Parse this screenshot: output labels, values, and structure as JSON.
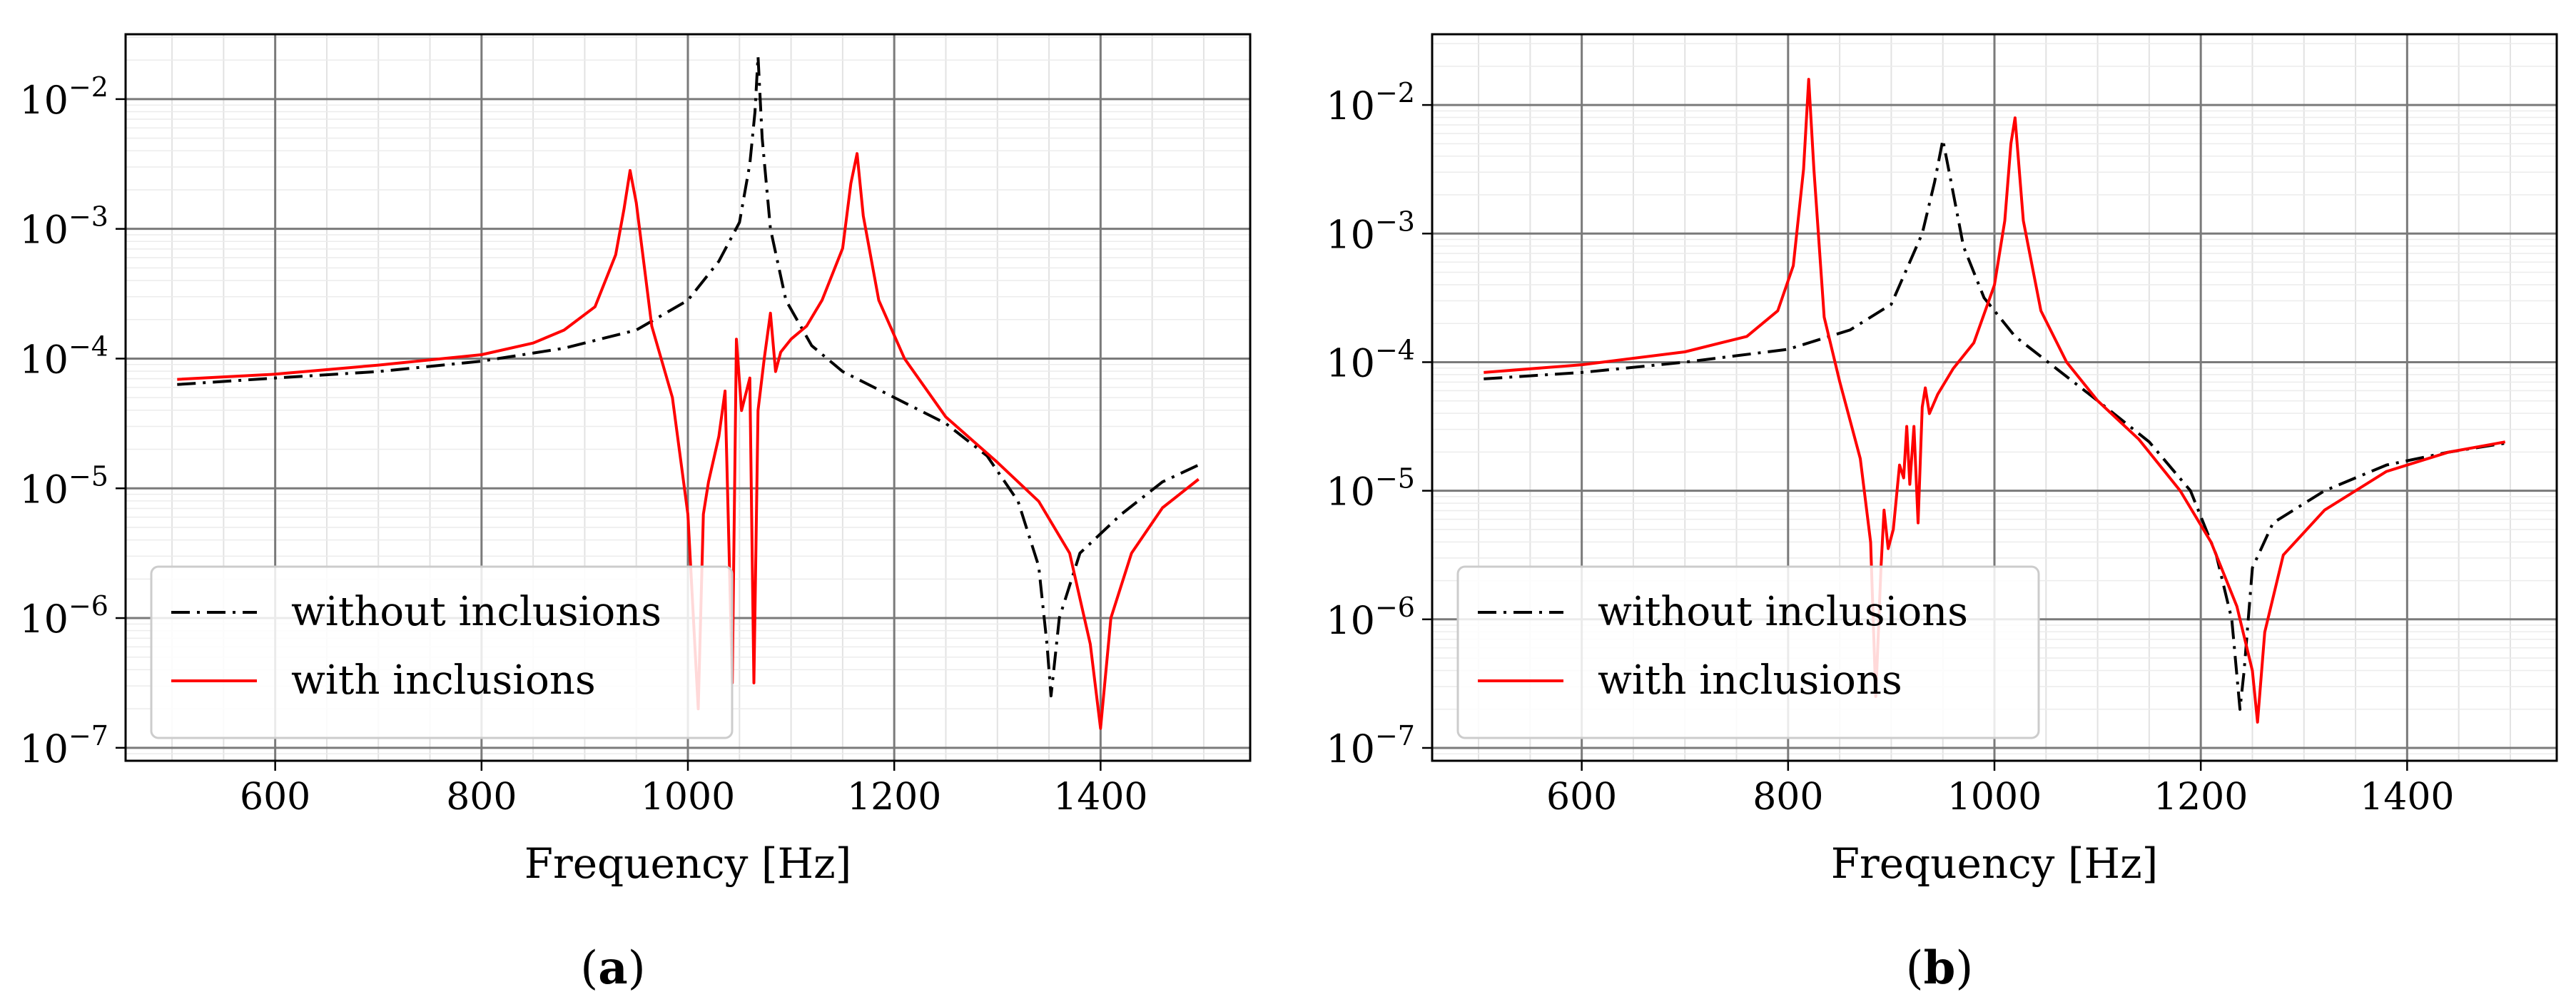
{
  "chart_data": [
    {
      "type": "line",
      "panel_label": "a",
      "title": "",
      "xlabel": "Frequency  [Hz]",
      "ylabel": "",
      "xlim": [
        455,
        1545
      ],
      "ylim_log10": [
        -7.1,
        -1.5
      ],
      "yscale": "log",
      "grid": true,
      "legend": "lower-left",
      "xticks": [
        {
          "value": 600,
          "label": "600"
        },
        {
          "value": 800,
          "label": "800"
        },
        {
          "value": 1000,
          "label": "1000"
        },
        {
          "value": 1200,
          "label": "1200"
        },
        {
          "value": 1400,
          "label": "1400"
        }
      ],
      "yticks": [
        {
          "exp": -7,
          "base": "10",
          "sup": "−7"
        },
        {
          "exp": -6,
          "base": "10",
          "sup": "−6"
        },
        {
          "exp": -5,
          "base": "10",
          "sup": "−5"
        },
        {
          "exp": -4,
          "base": "10",
          "sup": "−4"
        },
        {
          "exp": -3,
          "base": "10",
          "sup": "−3"
        },
        {
          "exp": -2,
          "base": "10",
          "sup": "−2"
        }
      ],
      "series": [
        {
          "name": "without inclusions",
          "color": "#000000",
          "style": "dashdot",
          "x": [
            505,
            600,
            700,
            800,
            880,
            950,
            1000,
            1030,
            1050,
            1060,
            1065,
            1068,
            1072,
            1080,
            1095,
            1120,
            1150,
            1200,
            1250,
            1290,
            1320,
            1340,
            1348,
            1352,
            1360,
            1380,
            1420,
            1460,
            1495
          ],
          "log10y": [
            -4.2,
            -4.15,
            -4.1,
            -4.02,
            -3.92,
            -3.78,
            -3.55,
            -3.25,
            -2.95,
            -2.5,
            -2.1,
            -1.67,
            -2.3,
            -3.0,
            -3.55,
            -3.9,
            -4.1,
            -4.3,
            -4.5,
            -4.75,
            -5.1,
            -5.6,
            -6.2,
            -6.6,
            -6.0,
            -5.5,
            -5.2,
            -4.95,
            -4.82
          ]
        },
        {
          "name": "with inclusions",
          "color": "#ff0000",
          "style": "solid",
          "x": [
            505,
            600,
            700,
            800,
            850,
            880,
            910,
            930,
            938,
            944,
            950,
            965,
            985,
            1000,
            1010,
            1015,
            1020,
            1030,
            1036,
            1040,
            1043,
            1047,
            1052,
            1060,
            1064,
            1068,
            1074,
            1080,
            1085,
            1090,
            1100,
            1115,
            1130,
            1150,
            1158,
            1164,
            1170,
            1185,
            1210,
            1250,
            1300,
            1340,
            1370,
            1390,
            1400,
            1410,
            1430,
            1460,
            1495
          ],
          "log10y": [
            -4.16,
            -4.12,
            -4.05,
            -3.97,
            -3.88,
            -3.78,
            -3.6,
            -3.2,
            -2.85,
            -2.55,
            -2.8,
            -3.75,
            -4.3,
            -5.2,
            -6.7,
            -5.2,
            -4.95,
            -4.6,
            -4.25,
            -5.5,
            -6.5,
            -3.85,
            -4.4,
            -4.15,
            -6.5,
            -4.4,
            -4.0,
            -3.65,
            -4.1,
            -3.95,
            -3.85,
            -3.75,
            -3.55,
            -3.15,
            -2.65,
            -2.42,
            -2.9,
            -3.55,
            -4.0,
            -4.45,
            -4.8,
            -5.1,
            -5.5,
            -6.2,
            -6.85,
            -6.0,
            -5.5,
            -5.15,
            -4.93
          ]
        }
      ]
    },
    {
      "type": "line",
      "panel_label": "b",
      "title": "",
      "xlabel": "Frequency  [Hz]",
      "ylabel": "",
      "xlim": [
        455,
        1545
      ],
      "ylim_log10": [
        -7.1,
        -1.45
      ],
      "yscale": "log",
      "grid": true,
      "legend": "lower-left",
      "xticks": [
        {
          "value": 600,
          "label": "600"
        },
        {
          "value": 800,
          "label": "800"
        },
        {
          "value": 1000,
          "label": "1000"
        },
        {
          "value": 1200,
          "label": "1200"
        },
        {
          "value": 1400,
          "label": "1400"
        }
      ],
      "yticks": [
        {
          "exp": -7,
          "base": "10",
          "sup": "−7"
        },
        {
          "exp": -6,
          "base": "10",
          "sup": "−6"
        },
        {
          "exp": -5,
          "base": "10",
          "sup": "−5"
        },
        {
          "exp": -4,
          "base": "10",
          "sup": "−4"
        },
        {
          "exp": -3,
          "base": "10",
          "sup": "−3"
        },
        {
          "exp": -2,
          "base": "10",
          "sup": "−2"
        }
      ],
      "series": [
        {
          "name": "without inclusions",
          "color": "#000000",
          "style": "dashdot",
          "x": [
            505,
            600,
            700,
            800,
            860,
            900,
            930,
            942,
            950,
            958,
            970,
            990,
            1020,
            1060,
            1100,
            1150,
            1190,
            1215,
            1230,
            1238,
            1242,
            1250,
            1270,
            1320,
            1380,
            1440,
            1495
          ],
          "log10y": [
            -4.13,
            -4.08,
            -4.0,
            -3.9,
            -3.75,
            -3.55,
            -3.0,
            -2.6,
            -2.27,
            -2.6,
            -3.1,
            -3.5,
            -3.8,
            -4.05,
            -4.3,
            -4.62,
            -5.0,
            -5.5,
            -6.0,
            -6.7,
            -6.4,
            -5.6,
            -5.25,
            -5.0,
            -4.8,
            -4.7,
            -4.63
          ]
        },
        {
          "name": "with inclusions",
          "color": "#ff0000",
          "style": "solid",
          "x": [
            505,
            600,
            700,
            760,
            790,
            805,
            815,
            820,
            825,
            835,
            850,
            870,
            880,
            885,
            890,
            893,
            897,
            902,
            908,
            912,
            915,
            918,
            922,
            926,
            930,
            933,
            937,
            945,
            960,
            980,
            1000,
            1010,
            1016,
            1020,
            1028,
            1045,
            1070,
            1100,
            1140,
            1180,
            1210,
            1235,
            1250,
            1255,
            1262,
            1280,
            1320,
            1380,
            1440,
            1495
          ],
          "log10y": [
            -4.08,
            -4.02,
            -3.92,
            -3.8,
            -3.6,
            -3.25,
            -2.5,
            -1.8,
            -2.5,
            -3.65,
            -4.15,
            -4.75,
            -5.4,
            -6.6,
            -5.6,
            -5.15,
            -5.45,
            -5.3,
            -4.8,
            -4.9,
            -4.5,
            -4.95,
            -4.5,
            -5.25,
            -4.35,
            -4.2,
            -4.4,
            -4.25,
            -4.05,
            -3.85,
            -3.4,
            -2.9,
            -2.3,
            -2.1,
            -2.9,
            -3.6,
            -4.0,
            -4.3,
            -4.6,
            -5.0,
            -5.4,
            -5.9,
            -6.4,
            -6.8,
            -6.1,
            -5.5,
            -5.15,
            -4.85,
            -4.7,
            -4.62
          ]
        }
      ]
    }
  ],
  "captions": {
    "a": "a",
    "b": "b"
  }
}
